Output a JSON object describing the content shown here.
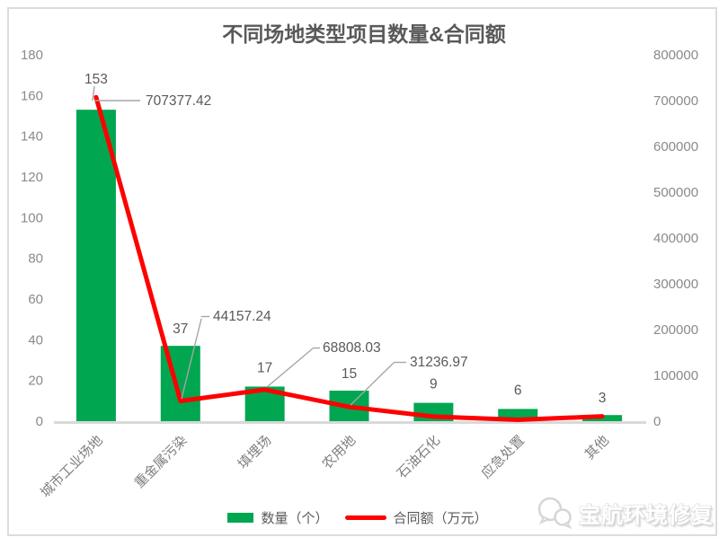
{
  "title": "不同场地类型项目数量&合同额",
  "chart_data": {
    "type": "bar+line combo",
    "title": "不同场地类型项目数量&合同额",
    "categories": [
      "城市工业场地",
      "重金属污染",
      "填埋场",
      "农用地",
      "石油石化",
      "应急处置",
      "其他"
    ],
    "series": [
      {
        "name": "数量（个）",
        "type": "bar",
        "axis": "left",
        "color": "#00A650",
        "values": [
          153,
          37,
          17,
          15,
          9,
          6,
          3
        ]
      },
      {
        "name": "合同额（万元）",
        "type": "line",
        "axis": "right",
        "color": "#FF0000",
        "values": [
          707377.42,
          44157.24,
          68808.03,
          31236.97,
          10000,
          3000,
          10500
        ],
        "point_labels": [
          "707377.42",
          "44157.24",
          "68808.03",
          "31236.97",
          null,
          null,
          null
        ]
      }
    ],
    "left_axis": {
      "ticks": [
        0,
        20,
        40,
        60,
        80,
        100,
        120,
        140,
        160,
        180
      ],
      "min": 0,
      "max": 180
    },
    "right_axis": {
      "ticks": [
        0,
        100000,
        200000,
        300000,
        400000,
        500000,
        600000,
        700000,
        800000
      ],
      "min": 0,
      "max": 800000
    },
    "grid": "off",
    "legend_position": "bottom"
  },
  "legend": {
    "bar_label": "数量（个）",
    "line_label": "合同额（万元）"
  },
  "watermark": {
    "text": "宝航环境修复"
  },
  "colors": {
    "bar_green": "#00A650",
    "line_red": "#FF0000",
    "axis_text": "#8a8a8a",
    "data_label": "#595959",
    "leader_line": "#a6a6a6",
    "axis_line": "#d9d9d9",
    "frame_border": "#dcdcdc"
  }
}
